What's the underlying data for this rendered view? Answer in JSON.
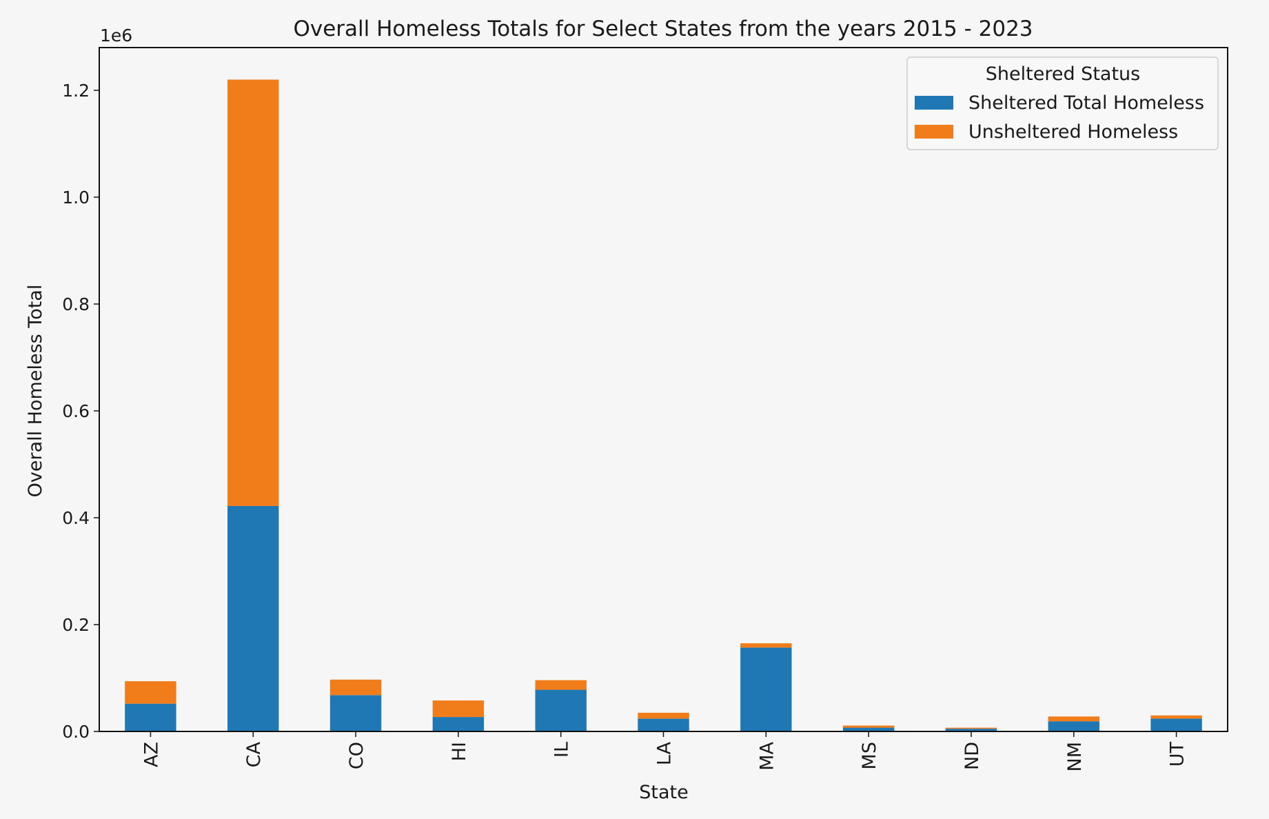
{
  "chart_data": {
    "type": "bar",
    "stacked": true,
    "title": "Overall Homeless Totals for Select States from the years 2015 - 2023",
    "xlabel": "State",
    "ylabel": "Overall Homeless Total",
    "y_offset_label": "1e6",
    "y_scale": 1000000,
    "ylim": [
      0,
      1.28
    ],
    "yticks": [
      0.0,
      0.2,
      0.4,
      0.6,
      0.8,
      1.0,
      1.2
    ],
    "ytick_labels": [
      "0.0",
      "0.2",
      "0.4",
      "0.6",
      "0.8",
      "1.0",
      "1.2"
    ],
    "categories": [
      "AZ",
      "CA",
      "CO",
      "HI",
      "IL",
      "LA",
      "MA",
      "MS",
      "ND",
      "NM",
      "UT"
    ],
    "series": [
      {
        "name": "Sheltered Total Homeless",
        "color": "#1f77b4",
        "values": [
          0.052,
          0.422,
          0.068,
          0.027,
          0.078,
          0.024,
          0.157,
          0.007,
          0.005,
          0.019,
          0.024
        ]
      },
      {
        "name": "Unsheltered Homeless",
        "color": "#f07d19",
        "values": [
          0.042,
          0.798,
          0.029,
          0.031,
          0.018,
          0.011,
          0.008,
          0.004,
          0.002,
          0.009,
          0.006
        ]
      }
    ],
    "legend": {
      "title": "Sheltered Status",
      "position": "top-right"
    },
    "grid": false
  }
}
